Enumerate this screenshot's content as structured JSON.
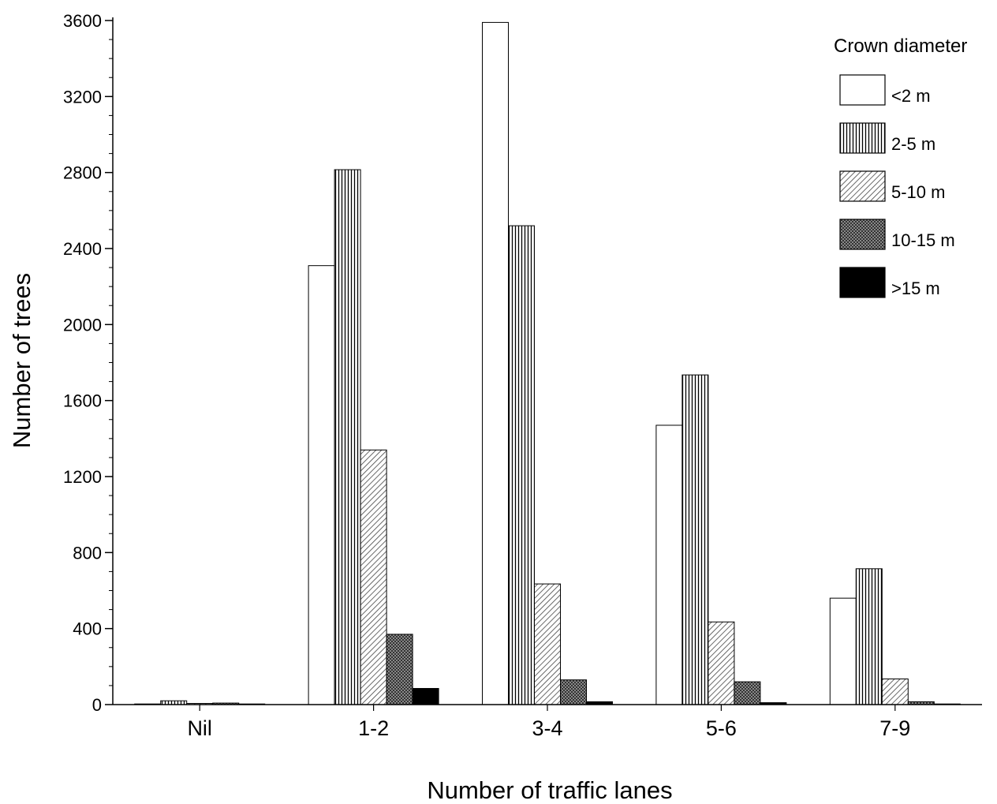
{
  "chart_data": {
    "type": "bar",
    "title": "",
    "xlabel": "Number of traffic lanes",
    "ylabel": "Number of trees",
    "categories": [
      "Nil",
      "1-2",
      "3-4",
      "5-6",
      "7-9"
    ],
    "ylim": [
      0,
      3600
    ],
    "yticks": [
      0,
      400,
      800,
      1200,
      1600,
      2000,
      2400,
      2800,
      3200,
      3600
    ],
    "grid": false,
    "legend_position": "top-right",
    "legend_title": "Crown diameter",
    "series": [
      {
        "name": "<2 m",
        "pattern": "white",
        "values": [
          2,
          2310,
          3590,
          1470,
          560
        ]
      },
      {
        "name": "2-5 m",
        "pattern": "vertical",
        "values": [
          20,
          2815,
          2520,
          1735,
          715
        ]
      },
      {
        "name": "5-10 m",
        "pattern": "diagonal",
        "values": [
          6,
          1340,
          635,
          435,
          135
        ]
      },
      {
        "name": "10-15 m",
        "pattern": "crosshatch",
        "values": [
          8,
          370,
          130,
          120,
          15
        ]
      },
      {
        "name": ">15 m",
        "pattern": "black",
        "values": [
          1,
          85,
          15,
          10,
          2
        ]
      }
    ]
  }
}
